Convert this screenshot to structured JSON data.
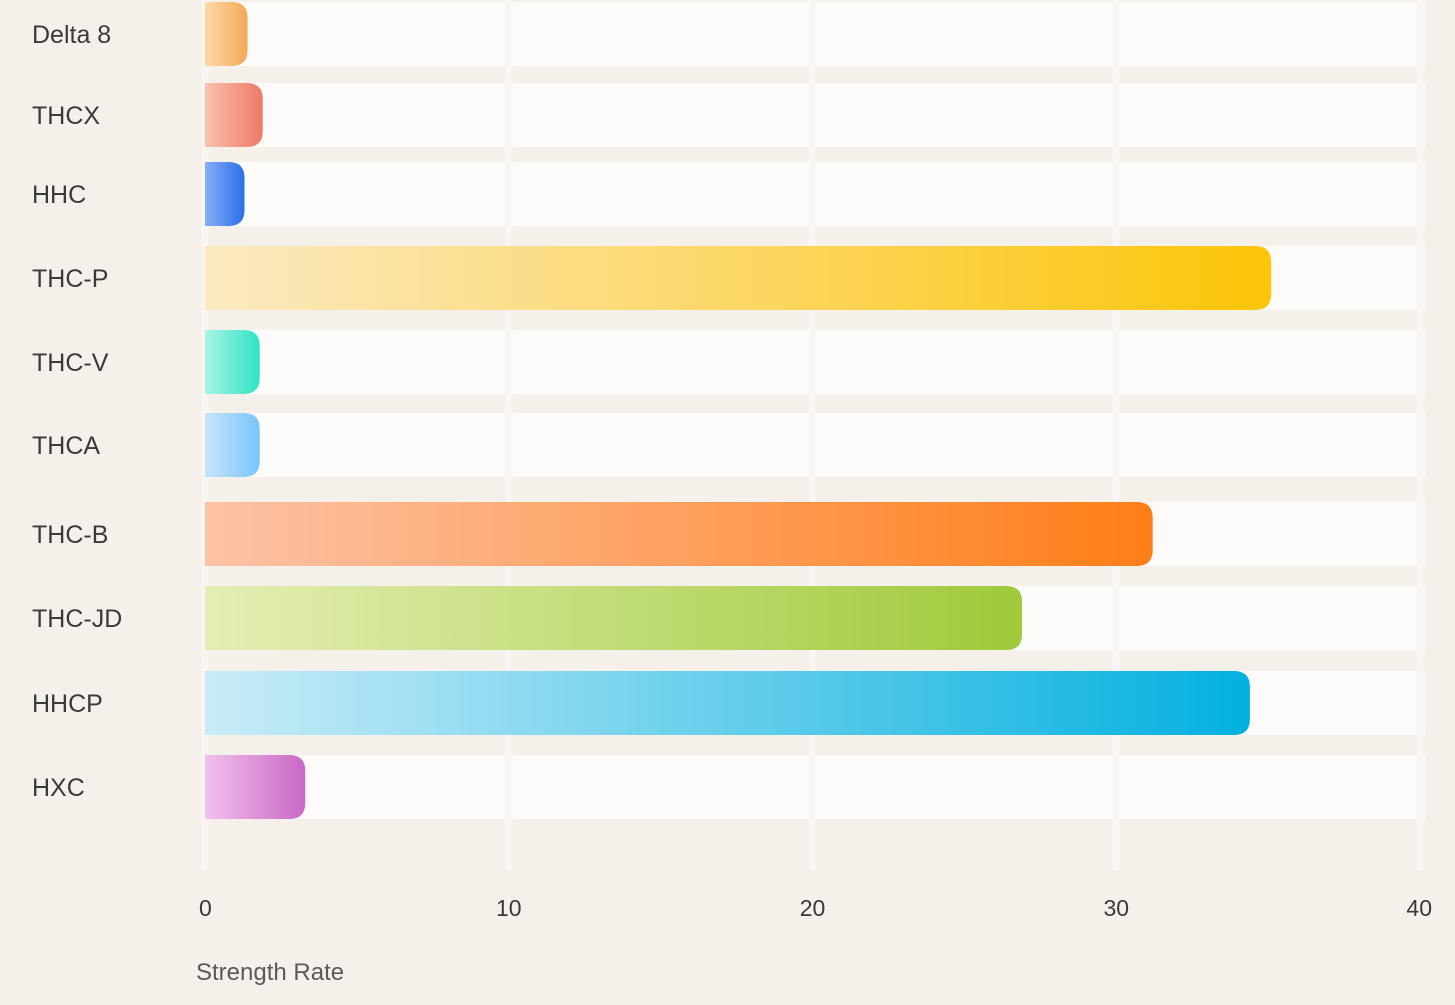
{
  "chart_data": {
    "type": "bar",
    "orientation": "horizontal",
    "categories": [
      "Delta 8",
      "THCX",
      "HHC",
      "THC-P",
      "THC-V",
      "THCA",
      "THC-B",
      "THC-JD",
      "HHCP",
      "HXC"
    ],
    "values": [
      1.4,
      1.9,
      1.3,
      35.1,
      1.8,
      1.8,
      31.2,
      26.9,
      34.4,
      3.3
    ],
    "colors": [
      [
        "#fcd9a8",
        "#f1aa55"
      ],
      [
        "#fcc0b0",
        "#ec7a66"
      ],
      [
        "#86aef6",
        "#2a6fe8"
      ],
      [
        "#fbe9c2",
        "#fcc508"
      ],
      [
        "#a6f5e3",
        "#2fe3c5"
      ],
      [
        "#c8e6fd",
        "#78c4fb"
      ],
      [
        "#fdc2a6",
        "#fe7e17"
      ],
      [
        "#e4eeb4",
        "#9fca3a"
      ],
      [
        "#c9ecf7",
        "#03b0df"
      ],
      [
        "#f2c0ec",
        "#ca68c6"
      ]
    ],
    "xlim": [
      0,
      40
    ],
    "xticks": [
      "0",
      "10",
      "20",
      "30",
      "40"
    ],
    "xlabel": "Strength Rate",
    "ylabel": "",
    "title": "",
    "grid": true,
    "legend": "none"
  }
}
